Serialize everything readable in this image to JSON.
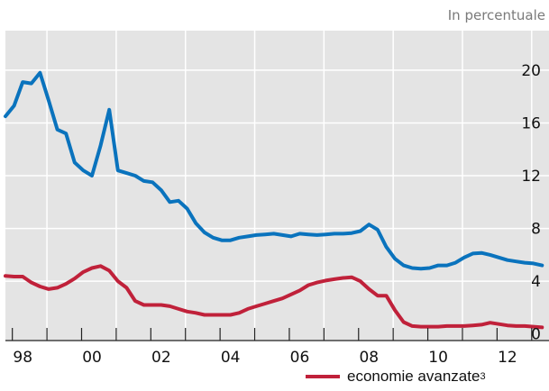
{
  "unit_note": "In percentuale",
  "colors": {
    "plot_background": "#e4e4e4",
    "gridline": "#ffffff",
    "series_blue": "#0a73bd",
    "series_red": "#c0213a"
  },
  "chart_data": {
    "type": "line",
    "title": "",
    "xlabel": "",
    "ylabel": "",
    "xlim": [
      1997.8,
      2013.5
    ],
    "ylim": [
      -0.5,
      23
    ],
    "y_ticks": [
      0,
      4,
      8,
      12,
      16,
      20
    ],
    "y_tick_labels": [
      "0",
      "4",
      "8",
      "12",
      "16",
      "20"
    ],
    "y_axis_side": "right",
    "x_minor_ticks": [
      1998,
      1999,
      2000,
      2001,
      2002,
      2003,
      2004,
      2005,
      2006,
      2007,
      2008,
      2009,
      2010,
      2011,
      2012,
      2013
    ],
    "x_tick_labels": [
      {
        "x": 1998.3,
        "label": "98"
      },
      {
        "x": 2000.3,
        "label": "00"
      },
      {
        "x": 2002.3,
        "label": "02"
      },
      {
        "x": 2004.3,
        "label": "04"
      },
      {
        "x": 2006.3,
        "label": "06"
      },
      {
        "x": 2008.3,
        "label": "08"
      },
      {
        "x": 2010.3,
        "label": "10"
      },
      {
        "x": 2012.3,
        "label": "12"
      }
    ],
    "grid": true,
    "legend_position": "bottom-right",
    "series": [
      {
        "color": "#0a73bd",
        "x": [
          1997.8,
          1998.05,
          1998.3,
          1998.55,
          1998.8,
          1999.05,
          1999.3,
          1999.55,
          1999.8,
          2000.05,
          2000.3,
          2000.55,
          2000.8,
          2001.05,
          2001.3,
          2001.55,
          2001.8,
          2002.05,
          2002.3,
          2002.55,
          2002.8,
          2003.05,
          2003.3,
          2003.55,
          2003.8,
          2004.05,
          2004.3,
          2004.55,
          2004.8,
          2005.05,
          2005.3,
          2005.55,
          2005.8,
          2006.05,
          2006.3,
          2006.55,
          2006.8,
          2007.05,
          2007.3,
          2007.55,
          2007.8,
          2008.05,
          2008.3,
          2008.55,
          2008.8,
          2009.05,
          2009.3,
          2009.55,
          2009.8,
          2010.05,
          2010.3,
          2010.55,
          2010.8,
          2011.05,
          2011.3,
          2011.55,
          2011.8,
          2012.05,
          2012.3,
          2012.55,
          2012.8,
          2013.05,
          2013.3
        ],
        "values": [
          16.5,
          17.3,
          19.1,
          19.0,
          19.8,
          17.7,
          15.5,
          15.2,
          13.0,
          12.4,
          12.0,
          14.3,
          17.0,
          12.4,
          12.2,
          12.0,
          11.6,
          11.5,
          10.9,
          10.0,
          10.1,
          9.5,
          8.4,
          7.7,
          7.3,
          7.1,
          7.1,
          7.3,
          7.4,
          7.5,
          7.55,
          7.6,
          7.5,
          7.4,
          7.6,
          7.55,
          7.5,
          7.55,
          7.6,
          7.6,
          7.65,
          7.8,
          8.3,
          7.9,
          6.6,
          5.7,
          5.2,
          5.0,
          4.95,
          5.0,
          5.2,
          5.2,
          5.4,
          5.8,
          6.1,
          6.15,
          6.0,
          5.8,
          5.6,
          5.5,
          5.4,
          5.35,
          5.2
        ]
      },
      {
        "name": "economie avanzate",
        "name_superscript": "3",
        "color": "#c0213a",
        "x": [
          1997.8,
          1998.05,
          1998.3,
          1998.55,
          1998.8,
          1999.05,
          1999.3,
          1999.55,
          1999.8,
          2000.05,
          2000.3,
          2000.55,
          2000.8,
          2001.05,
          2001.3,
          2001.55,
          2001.8,
          2002.05,
          2002.3,
          2002.55,
          2002.8,
          2003.05,
          2003.3,
          2003.55,
          2003.8,
          2004.05,
          2004.3,
          2004.55,
          2004.8,
          2005.05,
          2005.3,
          2005.55,
          2005.8,
          2006.05,
          2006.3,
          2006.55,
          2006.8,
          2007.05,
          2007.3,
          2007.55,
          2007.8,
          2008.05,
          2008.3,
          2008.55,
          2008.8,
          2009.05,
          2009.3,
          2009.55,
          2009.8,
          2010.05,
          2010.3,
          2010.55,
          2010.8,
          2011.05,
          2011.3,
          2011.55,
          2011.8,
          2012.05,
          2012.3,
          2012.55,
          2012.8,
          2013.05,
          2013.3
        ],
        "values": [
          4.4,
          4.35,
          4.35,
          3.9,
          3.6,
          3.4,
          3.5,
          3.8,
          4.2,
          4.7,
          5.0,
          5.15,
          4.8,
          4.0,
          3.5,
          2.5,
          2.2,
          2.2,
          2.2,
          2.1,
          1.9,
          1.7,
          1.6,
          1.45,
          1.45,
          1.45,
          1.45,
          1.6,
          1.9,
          2.1,
          2.3,
          2.5,
          2.7,
          3.0,
          3.3,
          3.7,
          3.9,
          4.05,
          4.15,
          4.25,
          4.3,
          4.0,
          3.4,
          2.9,
          2.9,
          1.8,
          0.9,
          0.6,
          0.55,
          0.55,
          0.55,
          0.6,
          0.6,
          0.6,
          0.65,
          0.7,
          0.85,
          0.75,
          0.65,
          0.6,
          0.6,
          0.55,
          0.5
        ]
      }
    ]
  }
}
